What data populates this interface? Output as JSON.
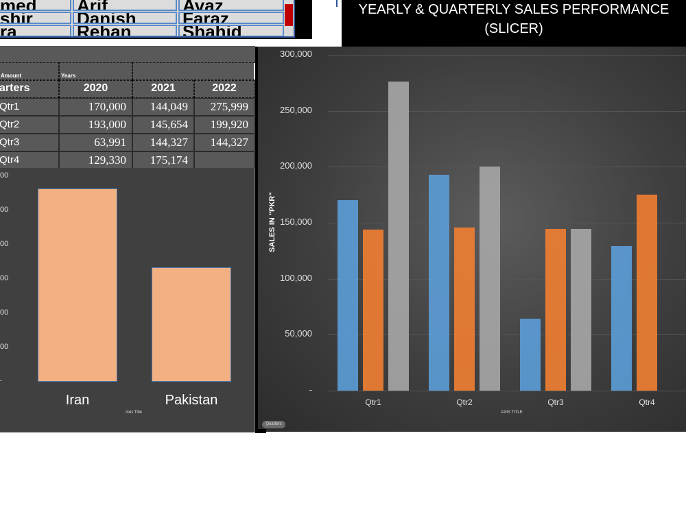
{
  "slicer": {
    "rows": [
      [
        "med",
        "Arif",
        "Avaz"
      ],
      [
        "shir",
        "Danish",
        "Faraz"
      ],
      [
        "ra",
        "Rehan",
        "Shahid"
      ]
    ]
  },
  "dashboard_title": "YEARLY & QUARTERLY SALES PERFORMANCE (SLICER)",
  "pivot": {
    "header_amount": "Amount",
    "header_years": "Years",
    "row_label_header": "arters",
    "columns": [
      "2020",
      "2021",
      "2022"
    ],
    "rows": [
      {
        "label": "Qtr1",
        "values": [
          "170,000",
          "144,049",
          "275,999"
        ]
      },
      {
        "label": "Qtr2",
        "values": [
          "193,000",
          "145,654",
          "199,920"
        ]
      },
      {
        "label": "Qtr3",
        "values": [
          "63,991",
          "144,327",
          "144,327"
        ]
      },
      {
        "label": "Qtr4",
        "values": [
          "129,330",
          "175,174",
          ""
        ]
      }
    ]
  },
  "chart_data": [
    {
      "type": "bar",
      "title": "",
      "categories": [
        "Iran",
        "Pakistan"
      ],
      "values": [
        565000,
        335000
      ],
      "y_tick_labels": [
        "00",
        "00",
        "00",
        "00",
        "00",
        "00",
        "-"
      ],
      "xlabel": "Axis Title",
      "bar_color": "#f2b083"
    },
    {
      "type": "bar",
      "title": "",
      "categories": [
        "Qtr1",
        "Qtr2",
        "Qtr3",
        "Qtr4"
      ],
      "series": [
        {
          "values": [
            170000,
            193000,
            63991,
            129330
          ],
          "color": "#5b9bd5"
        },
        {
          "values": [
            144049,
            145654,
            144327,
            175174
          ],
          "color": "#ed7d31"
        },
        {
          "values": [
            275999,
            199920,
            144327,
            null
          ],
          "color": "#a5a5a5"
        }
      ],
      "ylim": [
        0,
        300000
      ],
      "y_ticks": [
        "300,000",
        "250,000",
        "200,000",
        "150,000",
        "100,000",
        "50,000",
        "-"
      ],
      "ylabel": "SALES IN \"PKR\"",
      "xlabel": "AXIS TITLE",
      "grid": true
    }
  ],
  "field_button": "Quarters"
}
